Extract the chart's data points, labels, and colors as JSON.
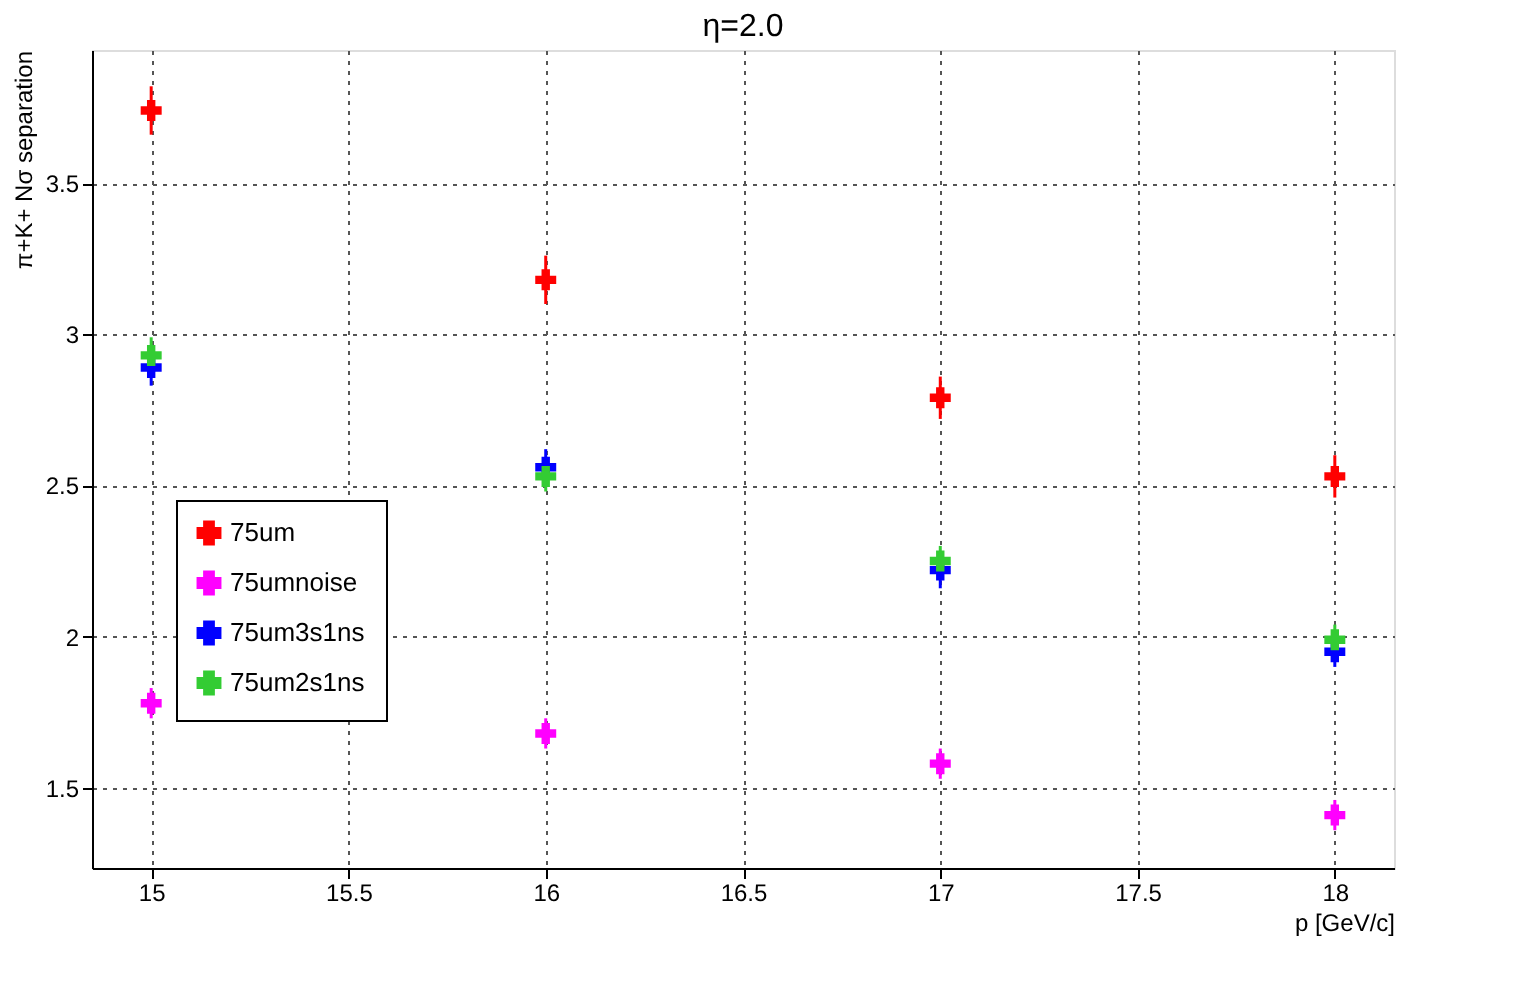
{
  "chart_data": {
    "type": "scatter",
    "title": "η=2.0",
    "xlabel": "p [GeV/c]",
    "ylabel": "π+K+ Nσ separation",
    "x": [
      15,
      16,
      17,
      18
    ],
    "series": [
      {
        "name": "75um",
        "color": "#ff0000",
        "values": [
          3.74,
          3.18,
          2.79,
          2.53
        ],
        "errors": [
          0.08,
          0.08,
          0.07,
          0.07
        ]
      },
      {
        "name": "75umnoise",
        "color": "#ff00ff",
        "values": [
          1.78,
          1.68,
          1.58,
          1.41
        ],
        "errors": [
          0.05,
          0.05,
          0.05,
          0.05
        ]
      },
      {
        "name": "75um3s1ns",
        "color": "#0000ff",
        "values": [
          2.89,
          2.56,
          2.22,
          1.95
        ],
        "errors": [
          0.06,
          0.06,
          0.06,
          0.05
        ]
      },
      {
        "name": "75um2s1ns",
        "color": "#33cc33",
        "values": [
          2.93,
          2.53,
          2.25,
          1.99
        ],
        "errors": [
          0.06,
          0.05,
          0.05,
          0.05
        ]
      }
    ],
    "xlim": [
      14.85,
      18.15
    ],
    "xticks": [
      15,
      15.5,
      16,
      16.5,
      17,
      17.5,
      18
    ],
    "ylim": [
      1.235,
      3.94
    ],
    "yticks": [
      1.5,
      2,
      2.5,
      3,
      3.5
    ],
    "grid": true,
    "legend": "left",
    "marker": "cross"
  }
}
